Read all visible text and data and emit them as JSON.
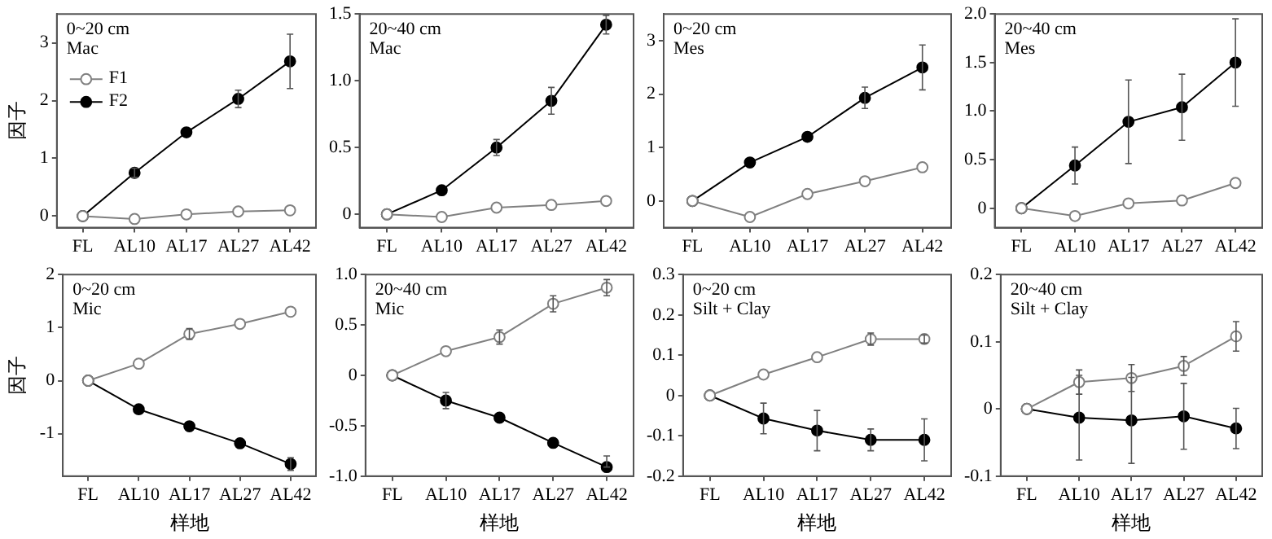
{
  "chart_data": [
    {
      "type": "line",
      "annotations": [
        "0~20 cm",
        "Mac"
      ],
      "ylabel": "因子",
      "categories": [
        "FL",
        "AL10",
        "AL17",
        "AL27",
        "AL42"
      ],
      "ylim": [
        -0.2,
        3.5
      ],
      "yticks": [
        0,
        1,
        2,
        3
      ],
      "grid": false,
      "legend": "top left",
      "marker": "circle",
      "series": [
        {
          "name": "F1",
          "color": "#808080",
          "values": [
            0,
            -0.05,
            0.03,
            0.08,
            0.1
          ]
        },
        {
          "name": "F2",
          "color": "#000000",
          "values": [
            0,
            0.75,
            1.45,
            2.03,
            2.68
          ],
          "errors": [
            null,
            0.08,
            null,
            0.15,
            0.47
          ]
        }
      ]
    },
    {
      "type": "line",
      "annotations": [
        "20~40 cm",
        "Mac"
      ],
      "categories": [
        "FL",
        "AL10",
        "AL17",
        "AL27",
        "AL42"
      ],
      "ylim": [
        -0.1,
        1.5
      ],
      "yticks": [
        0,
        {
          "value": 0.5,
          "label": "0.5"
        },
        {
          "value": 1,
          "label": "1.0"
        },
        {
          "value": 1.5,
          "label": "1.5"
        }
      ],
      "grid": false,
      "marker": "circle",
      "series": [
        {
          "color": "#808080",
          "values": [
            0,
            -0.02,
            0.05,
            0.07,
            0.1
          ]
        },
        {
          "color": "#000000",
          "values": [
            0,
            0.18,
            0.5,
            0.85,
            1.42
          ],
          "errors": [
            null,
            null,
            0.06,
            0.1,
            0.07
          ]
        }
      ]
    },
    {
      "type": "line",
      "annotations": [
        "0~20 cm",
        "Mes"
      ],
      "categories": [
        "FL",
        "AL10",
        "AL17",
        "AL27",
        "AL42"
      ],
      "ylim": [
        -0.5,
        3.5
      ],
      "yticks": [
        0,
        1,
        2,
        3
      ],
      "grid": false,
      "marker": "circle",
      "series": [
        {
          "color": "#808080",
          "values": [
            0,
            -0.3,
            0.13,
            0.37,
            0.63
          ]
        },
        {
          "color": "#000000",
          "values": [
            0,
            0.72,
            1.2,
            1.93,
            2.5
          ],
          "errors": [
            null,
            null,
            null,
            0.2,
            0.42
          ]
        }
      ]
    },
    {
      "type": "line",
      "annotations": [
        "20~40 cm",
        "Mes"
      ],
      "categories": [
        "FL",
        "AL10",
        "AL17",
        "AL27",
        "AL42"
      ],
      "ylim": [
        -0.2,
        2.0
      ],
      "yticks": [
        0,
        {
          "value": 0.5,
          "label": "0.5"
        },
        {
          "value": 1,
          "label": "1.0"
        },
        {
          "value": 1.5,
          "label": "1.5"
        },
        {
          "value": 2,
          "label": "2.0"
        }
      ],
      "grid": false,
      "marker": "circle",
      "series": [
        {
          "color": "#808080",
          "values": [
            0,
            -0.08,
            0.05,
            0.08,
            0.26
          ]
        },
        {
          "color": "#000000",
          "values": [
            0,
            0.44,
            0.89,
            1.04,
            1.5
          ],
          "errors": [
            null,
            0.19,
            0.43,
            0.34,
            0.45
          ]
        }
      ]
    },
    {
      "type": "line",
      "annotations": [
        "0~20 cm",
        "Mic"
      ],
      "ylabel": "因子",
      "xlabel": "样地",
      "categories": [
        "FL",
        "AL10",
        "AL17",
        "AL27",
        "AL42"
      ],
      "ylim": [
        -1.8,
        2
      ],
      "yticks": [
        -1,
        0,
        1,
        2
      ],
      "grid": false,
      "marker": "circle",
      "series": [
        {
          "color": "#808080",
          "values": [
            0,
            0.32,
            0.88,
            1.07,
            1.3
          ],
          "errors": [
            null,
            null,
            0.1,
            null,
            null
          ]
        },
        {
          "color": "#000000",
          "values": [
            0,
            -0.54,
            -0.86,
            -1.18,
            -1.57
          ],
          "errors": [
            null,
            null,
            null,
            null,
            0.12
          ]
        }
      ]
    },
    {
      "type": "line",
      "annotations": [
        "20~40 cm",
        "Mic"
      ],
      "xlabel": "样地",
      "categories": [
        "FL",
        "AL10",
        "AL17",
        "AL27",
        "AL42"
      ],
      "ylim": [
        -1.0,
        1.0
      ],
      "yticks": [
        {
          "value": -1,
          "label": "-1.0"
        },
        -0.5,
        0,
        0.5,
        {
          "value": 1,
          "label": "1.0"
        }
      ],
      "grid": false,
      "marker": "circle",
      "series": [
        {
          "color": "#808080",
          "values": [
            0,
            0.24,
            0.38,
            0.71,
            0.87
          ],
          "errors": [
            null,
            null,
            0.07,
            0.08,
            0.08
          ]
        },
        {
          "color": "#000000",
          "values": [
            0,
            -0.25,
            -0.42,
            -0.67,
            -0.91
          ],
          "errors": [
            null,
            0.08,
            null,
            null,
            [
              -0.91,
              -0.8
            ]
          ]
        }
      ]
    },
    {
      "type": "line",
      "annotations": [
        "0~20 cm",
        "Silt + Clay"
      ],
      "xlabel": "样地",
      "categories": [
        "FL",
        "AL10",
        "AL17",
        "AL27",
        "AL42"
      ],
      "ylim": [
        -0.2,
        0.3
      ],
      "yticks": [
        -0.2,
        -0.1,
        0,
        0.1,
        0.2,
        0.3
      ],
      "grid": false,
      "marker": "circle",
      "series": [
        {
          "color": "#808080",
          "values": [
            0,
            0.052,
            0.095,
            0.14,
            0.14
          ],
          "errors": [
            null,
            null,
            null,
            0.015,
            0.01
          ]
        },
        {
          "color": "#000000",
          "values": [
            0,
            -0.057,
            -0.087,
            -0.11,
            -0.11
          ],
          "errors": [
            null,
            0.038,
            0.05,
            0.027,
            0.052
          ]
        }
      ]
    },
    {
      "type": "line",
      "annotations": [
        "20~40 cm",
        "Silt + Clay"
      ],
      "xlabel": "样地",
      "categories": [
        "FL",
        "AL10",
        "AL17",
        "AL27",
        "AL42"
      ],
      "ylim": [
        -0.1,
        0.2
      ],
      "yticks": [
        -0.1,
        0,
        0.1,
        0.2
      ],
      "grid": false,
      "marker": "circle",
      "series": [
        {
          "color": "#808080",
          "values": [
            0,
            0.04,
            0.046,
            0.064,
            0.108
          ],
          "errors": [
            null,
            0.018,
            0.02,
            0.014,
            0.022
          ]
        },
        {
          "color": "#000000",
          "values": [
            0,
            -0.013,
            -0.017,
            -0.011,
            -0.029
          ],
          "errors": [
            null,
            0.063,
            0.064,
            0.049,
            0.03
          ]
        }
      ]
    }
  ]
}
